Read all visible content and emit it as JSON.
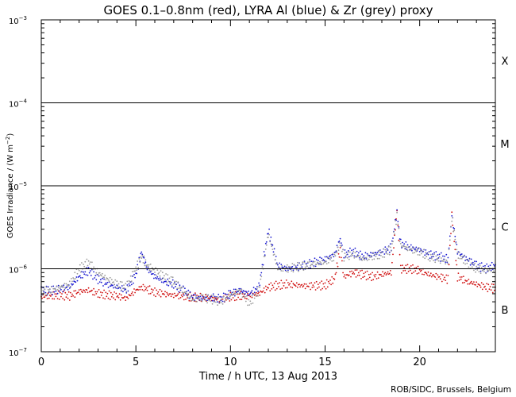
{
  "chart_data": {
    "type": "line",
    "title": "GOES 0.1–0.8nm (red), LYRA Al (blue) & Zr (grey) proxy",
    "xlabel": "Time / h UTC, 13 Aug 2013",
    "ylabel_main": "GOES Irradiance / (W m",
    "ylabel_exp": "−2",
    "ylabel_end": ")",
    "yscale": "log",
    "xlim": [
      0,
      24
    ],
    "ylim": [
      1e-07,
      0.001
    ],
    "x_ticks": [
      0,
      5,
      10,
      15,
      20
    ],
    "x_tick_labels": [
      "0",
      "5",
      "10",
      "15",
      "20"
    ],
    "y_ticks": [
      {
        "value": 1e-07,
        "base": "10",
        "exp": "−7"
      },
      {
        "value": 1e-06,
        "base": "10",
        "exp": "−6"
      },
      {
        "value": 1e-05,
        "base": "10",
        "exp": "−5"
      },
      {
        "value": 0.0001,
        "base": "10",
        "exp": "−4"
      },
      {
        "value": 0.001,
        "base": "10",
        "exp": "−3"
      }
    ],
    "class_lines": [
      1e-06,
      1e-05,
      0.0001
    ],
    "flare_classes": [
      {
        "label": "X",
        "value": 0.00032
      },
      {
        "label": "M",
        "value": 3.2e-05
      },
      {
        "label": "C",
        "value": 3.2e-06
      },
      {
        "label": "B",
        "value": 3.2e-07
      }
    ],
    "series": [
      {
        "color": "#d01010",
        "x": [
          0,
          0.5,
          1,
          1.5,
          2,
          2.5,
          3,
          3.5,
          4,
          4.5,
          5,
          5.3,
          5.6,
          6,
          6.5,
          7,
          7.5,
          8,
          8.5,
          9,
          9.5,
          10,
          10.5,
          11,
          11.5,
          12,
          12.5,
          13,
          14,
          15,
          15.5,
          15.8,
          16,
          16.5,
          17,
          17.5,
          18,
          18.5,
          18.8,
          19,
          19.5,
          20,
          20.5,
          21,
          21.5,
          21.7,
          22,
          22.5,
          23,
          23.5,
          24
        ],
        "y": [
          4.6e-07,
          4.7e-07,
          4.8e-07,
          4.7e-07,
          5.3e-07,
          5.5e-07,
          5e-07,
          4.8e-07,
          4.7e-07,
          4.4e-07,
          5.5e-07,
          6e-07,
          5.7e-07,
          5.2e-07,
          5e-07,
          4.8e-07,
          4.7e-07,
          4.5e-07,
          4.5e-07,
          4.4e-07,
          4.3e-07,
          4.6e-07,
          4.7e-07,
          4.8e-07,
          5e-07,
          6e-07,
          6.3e-07,
          6.5e-07,
          6.2e-07,
          6.3e-07,
          7.5e-07,
          1.7e-06,
          8e-07,
          9e-07,
          8.5e-07,
          8e-07,
          8.5e-07,
          9e-07,
          5e-06,
          1e-06,
          1e-06,
          9.5e-07,
          8.5e-07,
          8e-07,
          7.5e-07,
          4.5e-06,
          8e-07,
          7e-07,
          6.5e-07,
          6e-07,
          5.8e-07
        ]
      },
      {
        "color": "#1a1ad0",
        "x": [
          0,
          0.5,
          1,
          1.5,
          2,
          2.5,
          3,
          3.5,
          4,
          4.5,
          5,
          5.3,
          5.6,
          6,
          6.5,
          7,
          7.5,
          8,
          8.5,
          9,
          9.5,
          10,
          10.5,
          11,
          11.5,
          12,
          12.5,
          13,
          14,
          15,
          15.5,
          15.8,
          16,
          16.5,
          17,
          17.5,
          18,
          18.5,
          18.8,
          19,
          19.5,
          20,
          20.5,
          21,
          21.5,
          21.7,
          22,
          22.5,
          23,
          23.5,
          24
        ],
        "y": [
          5.5e-07,
          5.5e-07,
          5.7e-07,
          6e-07,
          8e-07,
          9.5e-07,
          7.5e-07,
          6.5e-07,
          6e-07,
          5.5e-07,
          8.5e-07,
          1.6e-06,
          1e-06,
          8e-07,
          7e-07,
          6.5e-07,
          5.5e-07,
          4.6e-07,
          4.4e-07,
          4.5e-07,
          4.3e-07,
          5e-07,
          5.5e-07,
          5e-07,
          6e-07,
          2.9e-06,
          1.1e-06,
          1e-06,
          1.1e-06,
          1.3e-06,
          1.5e-06,
          2.3e-06,
          1.5e-06,
          1.6e-06,
          1.4e-06,
          1.5e-06,
          1.6e-06,
          1.8e-06,
          4.8e-06,
          2e-06,
          1.8e-06,
          1.7e-06,
          1.5e-06,
          1.4e-06,
          1.3e-06,
          4.5e-06,
          1.6e-06,
          1.3e-06,
          1.1e-06,
          1e-06,
          1.1e-06
        ]
      },
      {
        "color": "#9a9a9a",
        "x": [
          0,
          0.5,
          1,
          1.5,
          2,
          2.5,
          3,
          3.5,
          4,
          4.5,
          5,
          5.3,
          5.6,
          6,
          6.5,
          7,
          7.5,
          8,
          8.5,
          9,
          9.5,
          10,
          10.5,
          11,
          11.5,
          12,
          12.5,
          13,
          14,
          15,
          15.5,
          15.8,
          16,
          16.5,
          17,
          17.5,
          18,
          18.5,
          18.8,
          19,
          19.5,
          20,
          20.5,
          21,
          21.5,
          21.7,
          22,
          22.5,
          23,
          23.5,
          24
        ],
        "y": [
          5.2e-07,
          5.5e-07,
          6e-07,
          6.5e-07,
          1e-06,
          1.2e-06,
          9e-07,
          7.5e-07,
          6.5e-07,
          6e-07,
          1e-06,
          1.4e-06,
          1.1e-06,
          9.5e-07,
          8e-07,
          7e-07,
          5.5e-07,
          4.2e-07,
          4.5e-07,
          4.3e-07,
          4e-07,
          4.8e-07,
          5.5e-07,
          3.8e-07,
          5.5e-07,
          2.6e-06,
          1e-06,
          1e-06,
          1.1e-06,
          1.2e-06,
          1.4e-06,
          2e-06,
          1.4e-06,
          1.5e-06,
          1.3e-06,
          1.4e-06,
          1.5e-06,
          1.7e-06,
          4.4e-06,
          1.9e-06,
          1.7e-06,
          1.6e-06,
          1.4e-06,
          1.3e-06,
          1.2e-06,
          4.2e-06,
          1.5e-06,
          1.2e-06,
          1e-06,
          9.5e-07,
          1e-06
        ]
      }
    ]
  },
  "credit": "ROB/SIDC, Brussels, Belgium"
}
